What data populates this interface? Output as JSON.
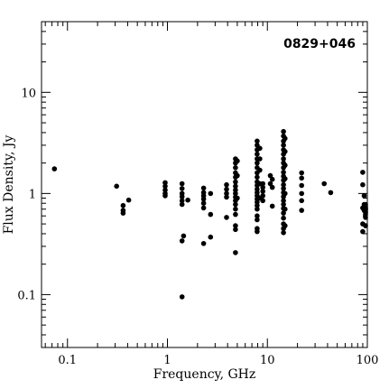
{
  "chart_data": {
    "type": "scatter",
    "title": "0829+046",
    "xlabel": "Frequency, GHz",
    "ylabel": "Flux Density, Jy",
    "x_scale": "log",
    "y_scale": "log",
    "xlim": [
      0.055,
      100
    ],
    "ylim": [
      0.03,
      50
    ],
    "x_ticks": [
      {
        "value": 0.1,
        "label": "0.1"
      },
      {
        "value": 1,
        "label": "1"
      },
      {
        "value": 10,
        "label": "10"
      },
      {
        "value": 100,
        "label": "100"
      }
    ],
    "y_ticks": [
      {
        "value": 0.1,
        "label": "0.1"
      },
      {
        "value": 1,
        "label": "1"
      },
      {
        "value": 10,
        "label": "10"
      }
    ],
    "grid": false,
    "marker_color": "#000000",
    "points": [
      [
        0.074,
        1.75
      ],
      [
        0.31,
        1.18
      ],
      [
        0.36,
        0.76
      ],
      [
        0.36,
        0.68
      ],
      [
        0.36,
        0.64
      ],
      [
        0.41,
        0.86
      ],
      [
        0.95,
        1.28
      ],
      [
        0.95,
        1.18
      ],
      [
        0.95,
        1.08
      ],
      [
        0.95,
        1.0
      ],
      [
        0.95,
        0.95
      ],
      [
        1.4,
        1.25
      ],
      [
        1.4,
        1.12
      ],
      [
        1.4,
        1.0
      ],
      [
        1.4,
        0.93
      ],
      [
        1.4,
        0.85
      ],
      [
        1.4,
        0.78
      ],
      [
        1.4,
        0.34
      ],
      [
        1.4,
        0.095
      ],
      [
        1.45,
        0.38
      ],
      [
        1.6,
        0.86
      ],
      [
        2.3,
        1.13
      ],
      [
        2.3,
        1.02
      ],
      [
        2.3,
        0.95
      ],
      [
        2.3,
        0.88
      ],
      [
        2.3,
        0.8
      ],
      [
        2.3,
        0.72
      ],
      [
        2.3,
        0.32
      ],
      [
        2.7,
        1.0
      ],
      [
        2.7,
        0.62
      ],
      [
        2.7,
        0.37
      ],
      [
        3.9,
        1.22
      ],
      [
        3.9,
        1.1
      ],
      [
        3.9,
        1.0
      ],
      [
        3.9,
        0.92
      ],
      [
        3.9,
        0.58
      ],
      [
        4.8,
        2.2
      ],
      [
        4.8,
        2.0
      ],
      [
        4.8,
        1.8
      ],
      [
        4.8,
        1.6
      ],
      [
        4.8,
        1.45
      ],
      [
        4.8,
        1.3
      ],
      [
        4.8,
        1.18
      ],
      [
        4.8,
        1.08
      ],
      [
        4.8,
        1.0
      ],
      [
        4.8,
        0.92
      ],
      [
        4.8,
        0.85
      ],
      [
        4.8,
        0.78
      ],
      [
        4.8,
        0.7
      ],
      [
        4.8,
        0.62
      ],
      [
        4.8,
        0.48
      ],
      [
        4.8,
        0.44
      ],
      [
        4.8,
        0.26
      ],
      [
        5.0,
        2.1
      ],
      [
        5.0,
        1.5
      ],
      [
        5.0,
        0.9
      ],
      [
        7.9,
        3.3
      ],
      [
        7.9,
        3.0
      ],
      [
        7.9,
        2.7
      ],
      [
        7.9,
        2.45
      ],
      [
        7.9,
        2.2
      ],
      [
        7.9,
        2.0
      ],
      [
        7.9,
        1.8
      ],
      [
        7.9,
        1.6
      ],
      [
        7.9,
        1.45
      ],
      [
        7.9,
        1.3
      ],
      [
        7.9,
        1.2
      ],
      [
        7.9,
        1.1
      ],
      [
        7.9,
        1.02
      ],
      [
        7.9,
        0.95
      ],
      [
        7.9,
        0.88
      ],
      [
        7.9,
        0.82
      ],
      [
        7.9,
        0.76
      ],
      [
        7.9,
        0.7
      ],
      [
        7.9,
        0.6
      ],
      [
        7.9,
        0.55
      ],
      [
        7.9,
        0.45
      ],
      [
        7.9,
        0.42
      ],
      [
        8.4,
        2.8
      ],
      [
        8.4,
        2.2
      ],
      [
        8.4,
        1.7
      ],
      [
        8.4,
        1.25
      ],
      [
        8.4,
        0.9
      ],
      [
        9.0,
        1.25
      ],
      [
        9.0,
        1.15
      ],
      [
        9.0,
        1.05
      ],
      [
        9.0,
        0.95
      ],
      [
        9.0,
        0.85
      ],
      [
        10.7,
        1.5
      ],
      [
        10.7,
        1.25
      ],
      [
        11.2,
        1.38
      ],
      [
        11.2,
        1.15
      ],
      [
        11.2,
        0.75
      ],
      [
        14.5,
        4.1
      ],
      [
        14.5,
        3.7
      ],
      [
        14.5,
        3.3
      ],
      [
        14.5,
        3.0
      ],
      [
        14.5,
        2.7
      ],
      [
        14.5,
        2.45
      ],
      [
        14.5,
        2.2
      ],
      [
        14.5,
        2.0
      ],
      [
        14.5,
        1.8
      ],
      [
        14.5,
        1.62
      ],
      [
        14.5,
        1.48
      ],
      [
        14.5,
        1.35
      ],
      [
        14.5,
        1.22
      ],
      [
        14.5,
        1.12
      ],
      [
        14.5,
        1.02
      ],
      [
        14.5,
        0.93
      ],
      [
        14.5,
        0.85
      ],
      [
        14.5,
        0.78
      ],
      [
        14.5,
        0.71
      ],
      [
        14.5,
        0.64
      ],
      [
        14.5,
        0.57
      ],
      [
        14.5,
        0.5
      ],
      [
        14.5,
        0.45
      ],
      [
        14.5,
        0.41
      ],
      [
        15.0,
        3.5
      ],
      [
        15.0,
        2.6
      ],
      [
        15.0,
        1.9
      ],
      [
        15.0,
        1.4
      ],
      [
        15.0,
        1.0
      ],
      [
        15.0,
        0.7
      ],
      [
        15.0,
        0.48
      ],
      [
        22,
        1.6
      ],
      [
        22,
        1.42
      ],
      [
        22,
        1.2
      ],
      [
        22,
        1.0
      ],
      [
        22,
        0.85
      ],
      [
        22,
        0.68
      ],
      [
        37,
        1.25
      ],
      [
        43,
        1.02
      ],
      [
        90,
        1.62
      ],
      [
        90,
        1.22
      ],
      [
        90,
        0.72
      ],
      [
        90,
        0.5
      ],
      [
        90,
        0.42
      ],
      [
        93,
        0.95
      ],
      [
        93,
        0.78
      ],
      [
        93,
        0.68
      ],
      [
        97,
        0.74
      ],
      [
        97,
        0.7
      ],
      [
        97,
        0.65
      ],
      [
        100,
        0.78
      ],
      [
        100,
        0.72
      ],
      [
        100,
        0.69
      ],
      [
        100,
        0.66
      ],
      [
        100,
        0.62
      ],
      [
        100,
        0.58
      ],
      [
        100,
        0.48
      ]
    ]
  }
}
